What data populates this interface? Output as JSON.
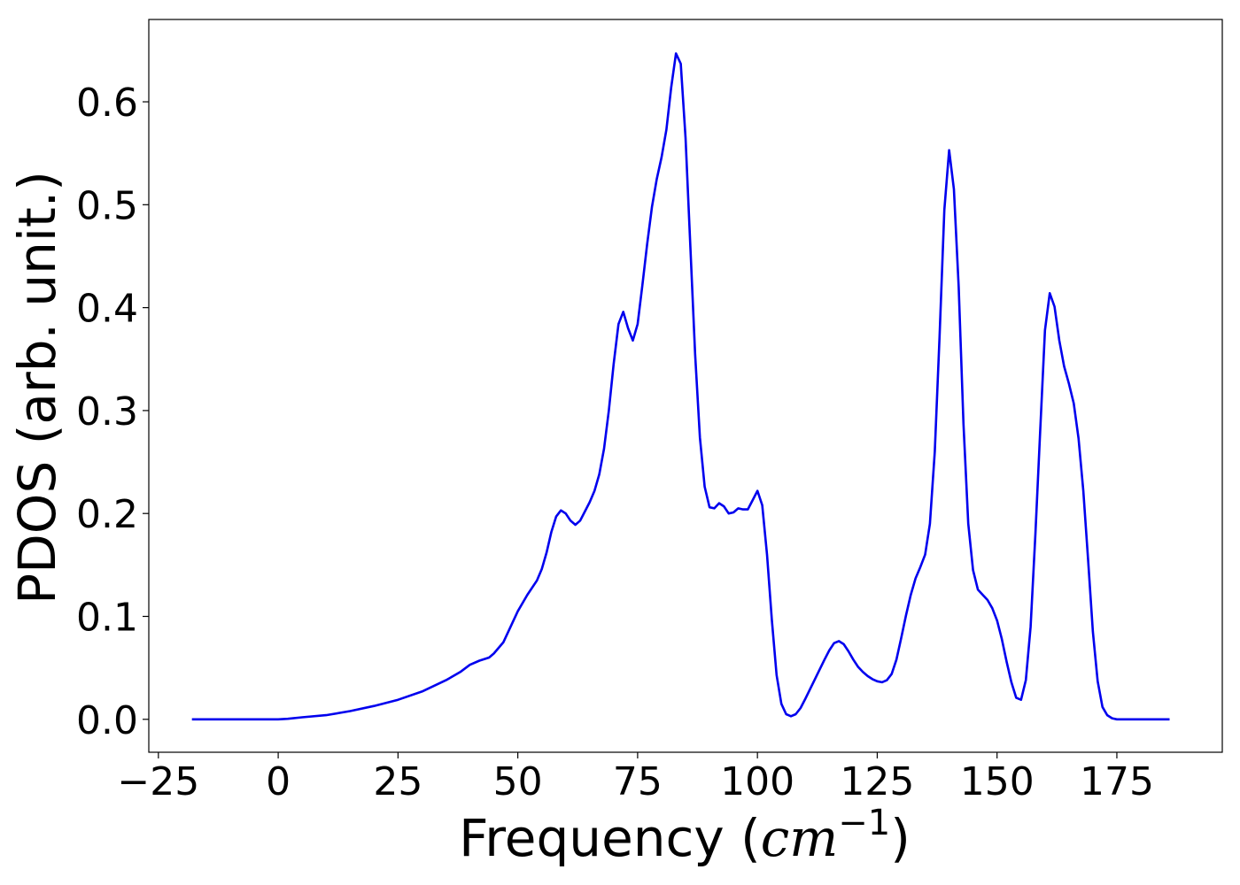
{
  "chart_data": {
    "type": "line",
    "xlabel": "Frequency (",
    "xlabel_math": "cm",
    "xlabel_sup": "−1",
    "xlabel_end": ")",
    "ylabel": "PDOS (arb. unit.)",
    "xlim": [
      -27,
      197
    ],
    "ylim": [
      -0.032,
      0.68
    ],
    "xticks": [
      -25,
      0,
      25,
      50,
      75,
      100,
      125,
      150,
      175
    ],
    "xtick_labels": [
      "−25",
      "0",
      "25",
      "50",
      "75",
      "100",
      "125",
      "150",
      "175"
    ],
    "yticks": [
      0.0,
      0.1,
      0.2,
      0.3,
      0.4,
      0.5,
      0.6
    ],
    "ytick_labels": [
      "0.0",
      "0.1",
      "0.2",
      "0.3",
      "0.4",
      "0.5",
      "0.6"
    ],
    "grid": false,
    "series": [
      {
        "color": "#0000ee",
        "x": [
          -18,
          -10,
          0,
          2,
          5,
          10,
          15,
          20,
          25,
          30,
          35,
          38,
          40,
          42,
          44,
          45,
          47,
          50,
          52,
          54,
          55,
          56,
          57,
          58,
          59,
          60,
          61,
          62,
          63,
          64,
          65,
          66,
          67,
          68,
          69,
          70,
          71,
          72,
          73,
          74,
          75,
          76,
          77,
          78,
          79,
          80,
          81,
          82,
          83,
          84,
          85,
          86,
          87,
          88,
          89,
          90,
          91,
          92,
          93,
          94,
          95,
          96,
          97,
          98,
          99,
          100,
          101,
          102,
          103,
          104,
          105,
          106,
          107,
          108,
          109,
          110,
          112,
          114,
          115,
          116,
          117,
          118,
          119,
          120,
          121,
          122,
          123,
          124,
          125,
          126,
          127,
          128,
          129,
          130,
          131,
          132,
          133,
          134,
          135,
          136,
          137,
          138,
          139,
          140,
          141,
          142,
          143,
          144,
          145,
          146,
          147,
          148,
          149,
          150,
          151,
          152,
          153,
          154,
          155,
          156,
          157,
          158,
          159,
          160,
          161,
          162,
          163,
          164,
          165,
          166,
          167,
          168,
          169,
          170,
          171,
          172,
          173,
          174,
          175,
          180,
          186
        ],
        "y": [
          0,
          0,
          0,
          0.0005,
          0.002,
          0.004,
          0.008,
          0.013,
          0.019,
          0.027,
          0.038,
          0.046,
          0.053,
          0.057,
          0.06,
          0.064,
          0.075,
          0.105,
          0.121,
          0.135,
          0.146,
          0.162,
          0.182,
          0.197,
          0.203,
          0.2,
          0.193,
          0.189,
          0.193,
          0.202,
          0.211,
          0.222,
          0.238,
          0.263,
          0.3,
          0.345,
          0.384,
          0.396,
          0.38,
          0.368,
          0.384,
          0.422,
          0.462,
          0.498,
          0.525,
          0.546,
          0.573,
          0.614,
          0.647,
          0.637,
          0.565,
          0.46,
          0.355,
          0.274,
          0.226,
          0.206,
          0.205,
          0.21,
          0.207,
          0.2,
          0.201,
          0.205,
          0.204,
          0.204,
          0.213,
          0.222,
          0.208,
          0.16,
          0.097,
          0.043,
          0.015,
          0.005,
          0.003,
          0.005,
          0.011,
          0.02,
          0.039,
          0.058,
          0.067,
          0.074,
          0.076,
          0.073,
          0.066,
          0.058,
          0.051,
          0.046,
          0.042,
          0.039,
          0.037,
          0.036,
          0.038,
          0.044,
          0.058,
          0.079,
          0.101,
          0.121,
          0.137,
          0.148,
          0.16,
          0.19,
          0.26,
          0.372,
          0.495,
          0.553,
          0.515,
          0.42,
          0.287,
          0.19,
          0.145,
          0.126,
          0.121,
          0.116,
          0.108,
          0.096,
          0.078,
          0.056,
          0.036,
          0.021,
          0.019,
          0.038,
          0.09,
          0.18,
          0.28,
          0.378,
          0.414,
          0.401,
          0.368,
          0.343,
          0.326,
          0.307,
          0.273,
          0.222,
          0.155,
          0.085,
          0.037,
          0.012,
          0.004,
          0.001,
          0,
          0,
          0
        ]
      }
    ]
  }
}
